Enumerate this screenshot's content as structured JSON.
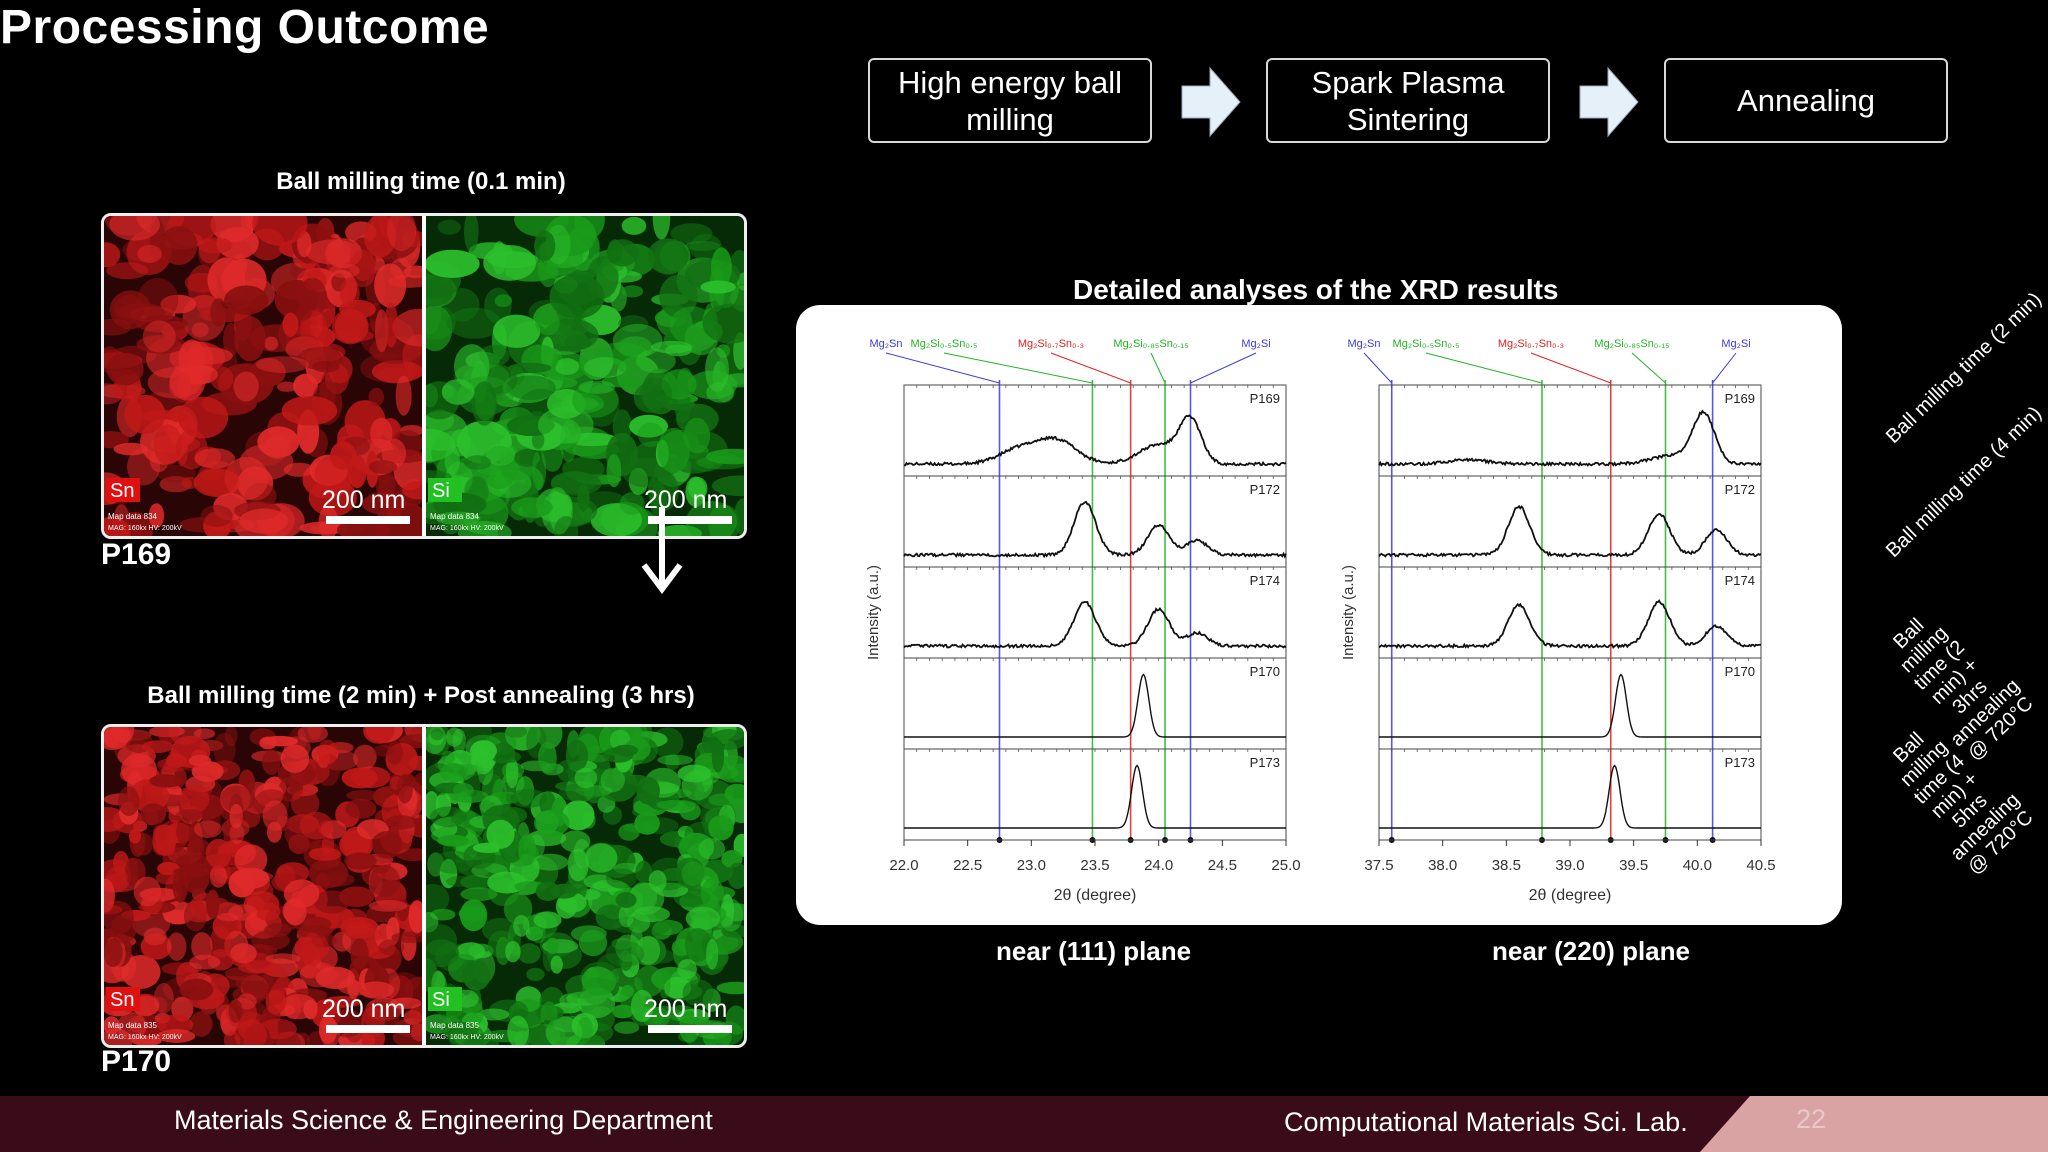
{
  "title": "Processing Outcome",
  "flow": {
    "steps": [
      "High energy ball\nmilling",
      "Spark Plasma\nSintering",
      "Annealing"
    ]
  },
  "micrographs": [
    {
      "caption": "Ball milling time (0.1 min)",
      "sample": "P169",
      "left": {
        "element": "Sn",
        "scale": "200 nm",
        "meta1": "Map data 834",
        "meta2": "MAG: 160kx HV: 200kV"
      },
      "right": {
        "element": "Si",
        "scale": "200 nm",
        "meta1": "Map data 834",
        "meta2": "MAG: 160kx HV: 200kV"
      }
    },
    {
      "caption": "Ball milling time (2 min) + Post annealing (3 hrs)",
      "sample": "P170",
      "left": {
        "element": "Sn",
        "scale": "200 nm",
        "meta1": "Map data 835",
        "meta2": "MAG: 160kx HV: 200kV"
      },
      "right": {
        "element": "Si",
        "scale": "200 nm",
        "meta1": "Map data 835",
        "meta2": "MAG: 160kx HV: 200kV"
      }
    }
  ],
  "xrd": {
    "title": "Detailed analyses of the XRD results",
    "planes": [
      "near (111) plane",
      "near (220) plane"
    ]
  },
  "colors": {
    "sn": "#d42020",
    "si": "#22b422",
    "mg2sn": "#3a3ae0",
    "footer": "#3a0c1a",
    "corner": "#d9a3a3"
  },
  "chart_data": [
    {
      "type": "line",
      "plane": "near (111) plane",
      "xlabel": "2θ (degree)",
      "ylabel": "Intensity (a.u.)",
      "xlim": [
        22.0,
        25.0
      ],
      "xticks": [
        "22.0",
        "22.5",
        "23.0",
        "23.5",
        "24.0",
        "24.5",
        "25.0"
      ],
      "reference_lines": [
        {
          "phase": "Mg₂Sn",
          "x": 22.75,
          "color": "#3a3ae0"
        },
        {
          "phase": "Mg₂Si₀.₅Sn₀.₅",
          "x": 23.48,
          "color": "#22b422"
        },
        {
          "phase": "Mg₂Si₀.₇Sn₀.₃",
          "x": 23.78,
          "color": "#e02020"
        },
        {
          "phase": "Mg₂Si₀.₈₅Sn₀.₁₅",
          "x": 24.05,
          "color": "#22b422"
        },
        {
          "phase": "Mg₂Si",
          "x": 24.25,
          "color": "#3a3ae0"
        }
      ],
      "series": [
        {
          "name": "P169",
          "peaks": [
            {
              "x": 22.9,
              "h": 0.2
            },
            {
              "x": 23.2,
              "h": 0.33
            },
            {
              "x": 24.0,
              "h": 0.27
            },
            {
              "x": 24.25,
              "h": 0.6
            }
          ]
        },
        {
          "name": "P172",
          "peaks": [
            {
              "x": 23.42,
              "h": 0.75
            },
            {
              "x": 24.0,
              "h": 0.42
            },
            {
              "x": 24.3,
              "h": 0.2
            }
          ]
        },
        {
          "name": "P174",
          "peaks": [
            {
              "x": 23.42,
              "h": 0.62
            },
            {
              "x": 24.0,
              "h": 0.52
            },
            {
              "x": 24.3,
              "h": 0.18
            }
          ]
        },
        {
          "name": "P170",
          "peaks": [
            {
              "x": 23.88,
              "h": 0.88
            }
          ]
        },
        {
          "name": "P173",
          "peaks": [
            {
              "x": 23.83,
              "h": 0.88
            }
          ]
        }
      ]
    },
    {
      "type": "line",
      "plane": "near (220) plane",
      "xlabel": "2θ (degree)",
      "ylabel": "Intensity (a.u.)",
      "xlim": [
        37.5,
        40.5
      ],
      "xticks": [
        "37.5",
        "38.0",
        "38.5",
        "39.0",
        "39.5",
        "40.0",
        "40.5"
      ],
      "reference_lines": [
        {
          "phase": "Mg₂Sn",
          "x": 37.6,
          "color": "#3a3ae0"
        },
        {
          "phase": "Mg₂Si₀.₅Sn₀.₅",
          "x": 38.78,
          "color": "#22b422"
        },
        {
          "phase": "Mg₂Si₀.₇Sn₀.₃",
          "x": 39.32,
          "color": "#e02020"
        },
        {
          "phase": "Mg₂Si₀.₈₅Sn₀.₁₅",
          "x": 39.75,
          "color": "#22b422"
        },
        {
          "phase": "Mg₂Si",
          "x": 40.12,
          "color": "#3a3ae0"
        }
      ],
      "series": [
        {
          "name": "P169",
          "peaks": [
            {
              "x": 38.2,
              "h": 0.06
            },
            {
              "x": 39.8,
              "h": 0.12
            },
            {
              "x": 40.05,
              "h": 0.7
            }
          ]
        },
        {
          "name": "P172",
          "peaks": [
            {
              "x": 38.6,
              "h": 0.68
            },
            {
              "x": 39.7,
              "h": 0.58
            },
            {
              "x": 40.15,
              "h": 0.35
            }
          ]
        },
        {
          "name": "P174",
          "peaks": [
            {
              "x": 38.6,
              "h": 0.58
            },
            {
              "x": 39.7,
              "h": 0.62
            },
            {
              "x": 40.15,
              "h": 0.28
            }
          ]
        },
        {
          "name": "P170",
          "peaks": [
            {
              "x": 39.4,
              "h": 0.88
            }
          ]
        },
        {
          "name": "P173",
          "peaks": [
            {
              "x": 39.35,
              "h": 0.88
            }
          ]
        }
      ]
    }
  ],
  "side_labels": [
    "Ball milling time (2 min)",
    "Ball milling time (4 min)",
    "Ball milling time (2 min) +\n3hrs annealing @ 720°C",
    "Ball milling time (4 min) +\n5hrs annealing @ 720°C"
  ],
  "footer": {
    "department": "Materials Science & Engineering Department",
    "lab": "Computational Materials Sci. Lab.",
    "page": "22"
  }
}
